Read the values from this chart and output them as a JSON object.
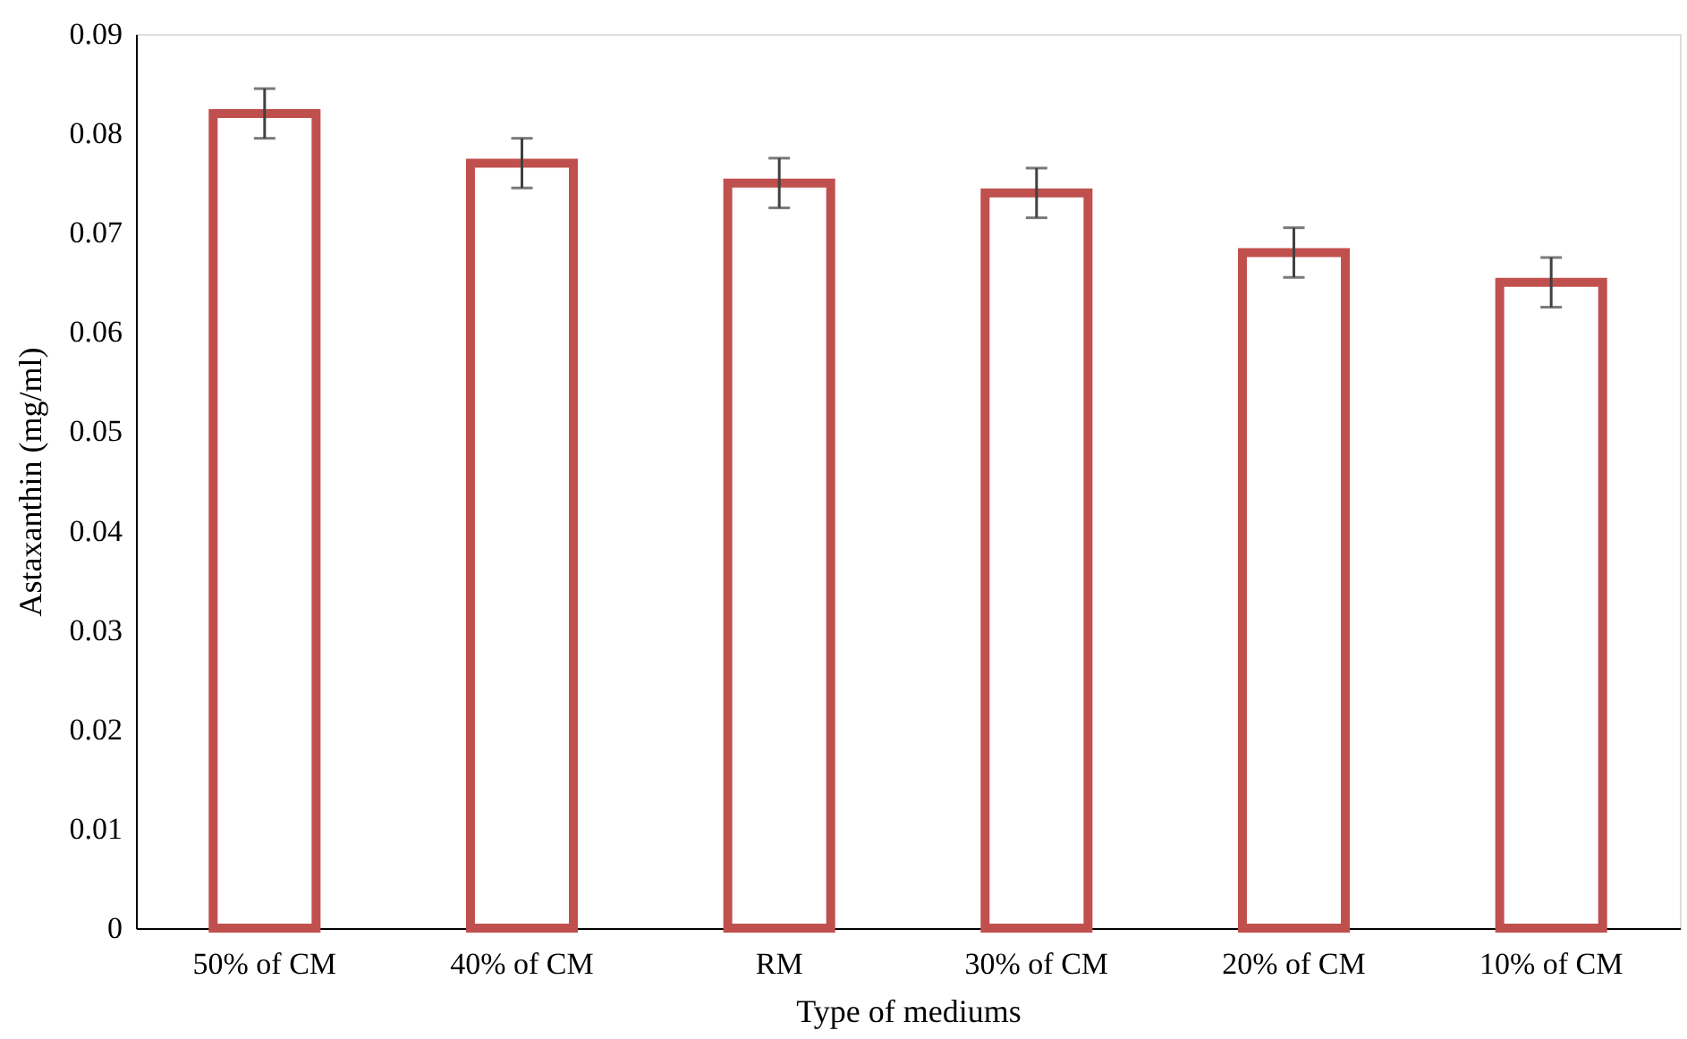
{
  "chart_data": {
    "type": "bar",
    "xlabel": "Type of mediums",
    "ylabel": "Astaxanthin (mg/ml)",
    "categories": [
      "50% of CM",
      "40% of CM",
      "RM",
      "30% of CM",
      "20% of CM",
      "10% of CM"
    ],
    "values": [
      0.082,
      0.077,
      0.075,
      0.074,
      0.068,
      0.065
    ],
    "colors": [
      "#c0504d",
      "#c0504d",
      "#c0504d",
      "#c0504d",
      "#c0504d",
      "#c0504d"
    ],
    "errors": [
      0.0025,
      0.0025,
      0.0025,
      0.0025,
      0.0025,
      0.0025
    ],
    "ylim": [
      0,
      0.09
    ],
    "yticks": [
      0,
      0.01,
      0.02,
      0.03,
      0.04,
      0.05,
      0.06,
      0.07,
      0.08,
      0.09
    ],
    "grid": false,
    "legend": false
  }
}
